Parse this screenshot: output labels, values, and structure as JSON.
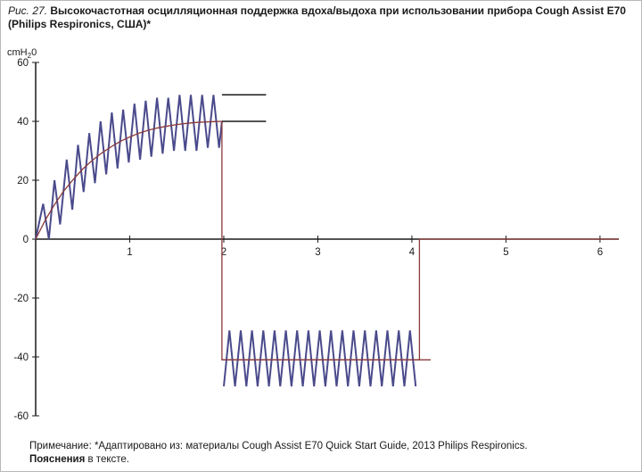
{
  "caption": {
    "label": "Рис. 27.",
    "title": "Высокочастотная осцилляционная поддержка вдоха/выдоха при использовании прибора Cough Assist E70 (Philips Respironics, США)*"
  },
  "footnote": {
    "line1": "Примечание: *Адаптировано из: материалы Cough Assist E70 Quick Start Guide, 2013 Philips Respironics.",
    "line2_bold": "Пояснения",
    "line2_rest": " в тексте."
  },
  "chart_data": {
    "type": "line",
    "ylabel_main": "cmH",
    "ylabel_sub": "2",
    "ylabel_end": "0",
    "xlim": [
      0,
      6.2
    ],
    "ylim": [
      -60,
      60
    ],
    "x_ticks": [
      "1",
      "2",
      "3",
      "4",
      "5",
      "6"
    ],
    "x_tick_values": [
      1,
      2,
      3,
      4,
      5,
      6
    ],
    "y_ticks": [
      "60",
      "40",
      "20",
      "0",
      "-20",
      "-40",
      "-60"
    ],
    "y_tick_values": [
      60,
      40,
      20,
      0,
      -20,
      -40,
      -60
    ],
    "colors": {
      "oscillation": "#4a4a8c",
      "mean": "#8b3a3a",
      "axis": "#1a1a1a"
    },
    "series": [
      {
        "role": "inspiration-oscillation",
        "x": [
          0.0,
          0.08,
          0.14,
          0.2,
          0.26,
          0.33,
          0.39,
          0.45,
          0.51,
          0.57,
          0.63,
          0.69,
          0.75,
          0.81,
          0.87,
          0.93,
          0.99,
          1.05,
          1.11,
          1.17,
          1.23,
          1.29,
          1.35,
          1.41,
          1.47,
          1.53,
          1.59,
          1.65,
          1.71,
          1.77,
          1.83,
          1.89,
          1.95,
          1.98
        ],
        "y": [
          0,
          12,
          0,
          20,
          5,
          27,
          10,
          32,
          16,
          36,
          19,
          40,
          22,
          43,
          24,
          44,
          26,
          46,
          27,
          47,
          28,
          48,
          29,
          48,
          30,
          49,
          30,
          49,
          30,
          49,
          31,
          49,
          31,
          40
        ]
      },
      {
        "role": "inspiration-mean",
        "x": [
          0.0,
          0.1,
          0.2,
          0.3,
          0.4,
          0.5,
          0.6,
          0.7,
          0.8,
          0.9,
          1.0,
          1.1,
          1.2,
          1.3,
          1.4,
          1.5,
          1.6,
          1.7,
          1.8,
          1.9,
          1.98
        ],
        "y": [
          0,
          6.3,
          11.7,
          16.4,
          20.3,
          23.8,
          26.7,
          29.2,
          31.3,
          33.2,
          34.7,
          36.0,
          37.0,
          37.8,
          38.4,
          38.9,
          39.3,
          39.6,
          39.8,
          39.9,
          40
        ]
      },
      {
        "role": "peak-level",
        "x": [
          1.98,
          2.45
        ],
        "y": [
          49,
          49
        ]
      },
      {
        "role": "mean-level",
        "x": [
          1.98,
          2.45
        ],
        "y": [
          40,
          40
        ]
      },
      {
        "role": "transition-mean",
        "x": [
          1.98,
          1.98,
          4.08,
          4.08,
          6.2
        ],
        "y": [
          40,
          -41,
          -41,
          0,
          0
        ]
      },
      {
        "role": "expiration-oscillation",
        "x": [
          2.0,
          2.06,
          2.12,
          2.18,
          2.24,
          2.3,
          2.36,
          2.42,
          2.48,
          2.54,
          2.6,
          2.66,
          2.72,
          2.78,
          2.84,
          2.9,
          2.96,
          3.02,
          3.08,
          3.14,
          3.2,
          3.26,
          3.32,
          3.38,
          3.44,
          3.5,
          3.56,
          3.62,
          3.68,
          3.74,
          3.8,
          3.86,
          3.92,
          3.98,
          4.04
        ],
        "y": [
          -50,
          -31,
          -50,
          -31,
          -50,
          -31,
          -50,
          -31,
          -50,
          -31,
          -50,
          -31,
          -50,
          -31,
          -50,
          -31,
          -50,
          -31,
          -50,
          -31,
          -50,
          -31,
          -50,
          -31,
          -50,
          -31,
          -50,
          -31,
          -50,
          -31,
          -50,
          -31,
          -50,
          -31,
          -50
        ]
      },
      {
        "role": "expiration-mean",
        "x": [
          1.98,
          4.2
        ],
        "y": [
          -41,
          -41
        ]
      }
    ]
  }
}
